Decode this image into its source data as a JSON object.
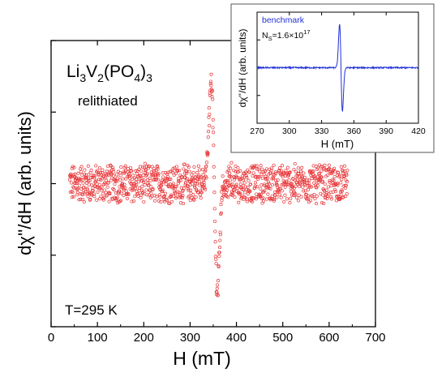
{
  "chart_data": [
    {
      "type": "scatter",
      "title": "",
      "xlabel": "H (mT)",
      "ylabel": "dχ''/dH (arb. units)",
      "xlim": [
        0,
        700
      ],
      "xticks": [
        0,
        100,
        200,
        300,
        400,
        500,
        600,
        700
      ],
      "ylim": [
        -1.0,
        1.0
      ],
      "y_tick_labels_shown": false,
      "grid": false,
      "marker": "open-circle",
      "color": "#e8373a",
      "annotations": {
        "compound": "Li3V2(PO4)3",
        "condition": "relithiated",
        "temperature": "T=295 K"
      },
      "series": [
        {
          "x_range": [
            40,
            640
          ],
          "baseline": 0.0,
          "noise_amplitude": 0.12,
          "resonance_center": 352,
          "positive_peak": {
            "x": 347,
            "y": 0.82
          },
          "negative_peak": {
            "x": 358,
            "y": -0.72
          }
        }
      ]
    },
    {
      "type": "line",
      "title": "",
      "xlabel": "H (mT)",
      "ylabel": "dχ''/dH (arb. units)",
      "xlim": [
        270,
        420
      ],
      "xticks": [
        270,
        300,
        330,
        360,
        390,
        420
      ],
      "ylim": [
        -1.0,
        1.0
      ],
      "y_tick_labels_shown": false,
      "grid": false,
      "legend": {
        "label": "benchmark",
        "placement": "top-left"
      },
      "annotation": "NS=1.6×10^17",
      "color": "#2030d8",
      "series": [
        {
          "name": "benchmark",
          "x_range": [
            270,
            420
          ],
          "baseline": 0.0,
          "resonance_center": 348,
          "positive_peak": {
            "x": 347,
            "y": 0.85
          },
          "negative_peak": {
            "x": 350,
            "y": -0.8
          }
        }
      ]
    }
  ],
  "text": {
    "main_xlabel": "H (mT)",
    "main_ylabel": "dχ''/dH (arb. units)",
    "compound_prefix": "Li",
    "compound_sub1": "3",
    "compound_v": "V",
    "compound_sub2": "2",
    "compound_po": "(PO",
    "compound_sub3": "4",
    "compound_close": ")",
    "compound_sub4": "3",
    "condition": "relithiated",
    "temperature": "T=295 K",
    "inset_legend": "benchmark",
    "inset_ns_prefix": "N",
    "inset_ns_sub": "S",
    "inset_ns_value": "=1.6×10",
    "inset_ns_exp": "17",
    "inset_xlabel": "H (mT)",
    "inset_ylabel": "dχ''/dH (arb. units)"
  }
}
